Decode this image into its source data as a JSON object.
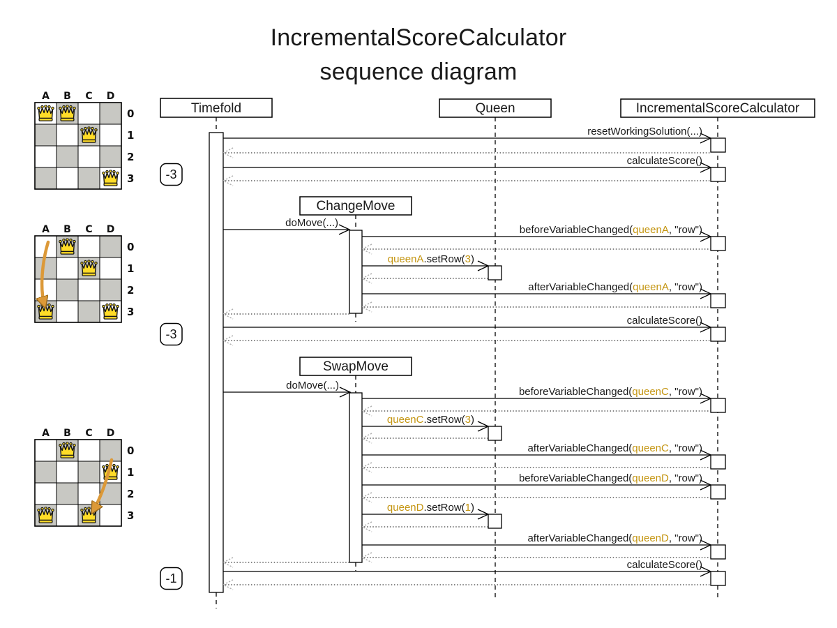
{
  "title": {
    "line1": "IncrementalScoreCalculator",
    "line2": "sequence diagram"
  },
  "colors": {
    "line": "#000000",
    "text": "#1a1a1a",
    "highlight": "#C49511",
    "return_line": "#3a3a3a",
    "return_arrow": "#b4b4b4",
    "board_dark": "#c8c8c3",
    "board_light": "#ffffff",
    "queen_fill": "#FFDC28",
    "queen_stroke": "#151515",
    "move_arrow": "#DC9938",
    "move_arrow_outline": "#9A6A1B"
  },
  "participants": [
    {
      "id": "timefold",
      "label": "Timefold"
    },
    {
      "id": "queen",
      "label": "Queen"
    },
    {
      "id": "isc",
      "label": "IncrementalScoreCalculator"
    }
  ],
  "inner_participants": [
    {
      "id": "changemove",
      "label": "ChangeMove"
    },
    {
      "id": "swapmove",
      "label": "SwapMove"
    }
  ],
  "scores": [
    {
      "label": "-3"
    },
    {
      "label": "-3"
    },
    {
      "label": "-1"
    }
  ],
  "messages": [
    {
      "parts": [
        {
          "t": "resetWorkingSolution(...)"
        }
      ]
    },
    {
      "parts": [
        {
          "t": "calculateScore()"
        }
      ]
    },
    {
      "parts": [
        {
          "t": "doMove(...)"
        }
      ]
    },
    {
      "parts": [
        {
          "t": "beforeVariableChanged("
        },
        {
          "t": "queenA",
          "hl": true
        },
        {
          "t": ", \"row\")"
        }
      ]
    },
    {
      "parts": [
        {
          "t": "queenA",
          "hl": true
        },
        {
          "t": ".setRow("
        },
        {
          "t": "3",
          "hl": true
        },
        {
          "t": ")"
        }
      ]
    },
    {
      "parts": [
        {
          "t": "afterVariableChanged("
        },
        {
          "t": "queenA",
          "hl": true
        },
        {
          "t": ", \"row\")"
        }
      ]
    },
    {
      "parts": [
        {
          "t": "calculateScore()"
        }
      ]
    },
    {
      "parts": [
        {
          "t": "doMove(...)"
        }
      ]
    },
    {
      "parts": [
        {
          "t": "beforeVariableChanged("
        },
        {
          "t": "queenC",
          "hl": true
        },
        {
          "t": ", \"row\")"
        }
      ]
    },
    {
      "parts": [
        {
          "t": "queenC",
          "hl": true
        },
        {
          "t": ".setRow("
        },
        {
          "t": "3",
          "hl": true
        },
        {
          "t": ")"
        }
      ]
    },
    {
      "parts": [
        {
          "t": "afterVariableChanged("
        },
        {
          "t": "queenC",
          "hl": true
        },
        {
          "t": ", \"row\")"
        }
      ]
    },
    {
      "parts": [
        {
          "t": "beforeVariableChanged("
        },
        {
          "t": "queenD",
          "hl": true
        },
        {
          "t": ", \"row\")"
        }
      ]
    },
    {
      "parts": [
        {
          "t": "queenD",
          "hl": true
        },
        {
          "t": ".setRow("
        },
        {
          "t": "1",
          "hl": true
        },
        {
          "t": ")"
        }
      ]
    },
    {
      "parts": [
        {
          "t": "afterVariableChanged("
        },
        {
          "t": "queenD",
          "hl": true
        },
        {
          "t": ", \"row\")"
        }
      ]
    },
    {
      "parts": [
        {
          "t": "calculateScore()"
        }
      ]
    }
  ],
  "boards": [
    {
      "columns": [
        "A",
        "B",
        "C",
        "D"
      ],
      "rows": [
        "0",
        "1",
        "2",
        "3"
      ],
      "queens": [
        "A0",
        "B0",
        "C1",
        "D3"
      ],
      "arrow": null
    },
    {
      "columns": [
        "A",
        "B",
        "C",
        "D"
      ],
      "rows": [
        "0",
        "1",
        "2",
        "3"
      ],
      "queens": [
        "B0",
        "C1",
        "A3",
        "D3"
      ],
      "arrow": {
        "from": "A0",
        "to": "A3"
      }
    },
    {
      "columns": [
        "A",
        "B",
        "C",
        "D"
      ],
      "rows": [
        "0",
        "1",
        "2",
        "3"
      ],
      "queens": [
        "B0",
        "D1",
        "A3",
        "C3"
      ],
      "arrow": {
        "from": "D1",
        "to": "C3"
      }
    }
  ]
}
